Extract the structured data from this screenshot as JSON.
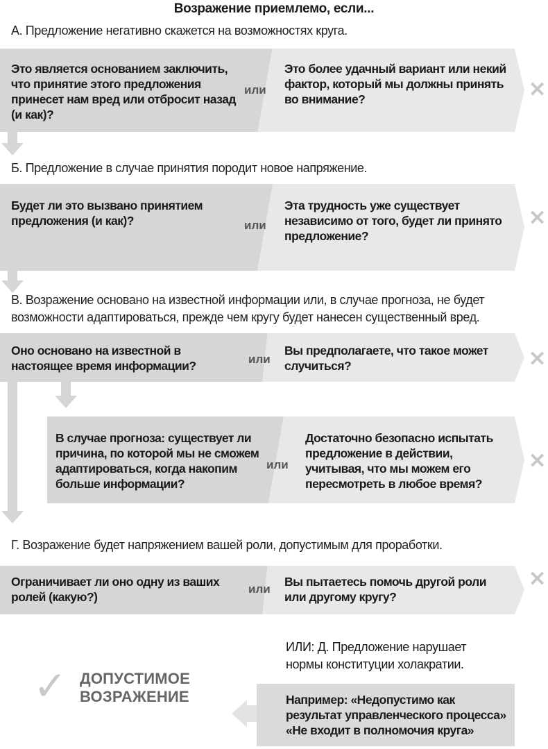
{
  "title": "Возражение приемлемо, если...",
  "sections": [
    {
      "heading": "А. Предложение негативно скажется на возможностях круга.",
      "question_left": "Это является основанием заключить, что принятие этого предложения принесет нам вред или отбросит назад (и как)?",
      "or_label": "или",
      "question_right": "Это более удачный вариант или некий фактор, который мы должны принять во внимание?"
    },
    {
      "heading": "Б. Предложение в случае принятия породит новое напряжение.",
      "question_left": "Будет ли это вызвано принятием предложения (и как)?",
      "or_label": "или",
      "question_right": "Эта трудность уже существует независимо от того, будет ли принято предложение?"
    },
    {
      "heading": "В. Возражение основано на известной информации или, в случае прогноза, не будет возможности адаптироваться, прежде чем кругу будет нанесен существенный вред.",
      "question_left": "Оно основано на известной в настоящее время информации?",
      "or_label": "или",
      "question_right": "Вы предполагаете, что такое может случиться?",
      "sub": {
        "question_left": "В случае прогноза: существует ли причина, по которой мы не сможем адаптироваться, когда накопим больше информации?",
        "or_label": "или",
        "question_right": "Достаточно безопасно испытать предложение в действии, учитывая, что мы можем его пересмотреть в любое время?"
      }
    },
    {
      "heading": "Г. Возражение будет напряжением вашей роли, допустимым для проработки.",
      "question_left": "Ограничивает ли оно одну из ваших ролей (какую?)",
      "or_label": "или",
      "question_right": "Вы пытаетесь помочь другой роли или другому кругу?"
    }
  ],
  "alt": {
    "heading": "ИЛИ: Д. Предложение нарушает нормы конституции холакратии.",
    "example": "Например: «Недопустимо как результат управленческого процесса» «Не входит в полномочия круга»"
  },
  "result": {
    "icon": "check-icon",
    "label_line1": "ДОПУСТИМОЕ",
    "label_line2": "ВОЗРАЖЕНИЕ"
  },
  "reject_icon": "x-icon",
  "reject_glyph": "✕",
  "check_glyph": "✓",
  "colors": {
    "box_dark": "#d6d6d6",
    "box_light": "#e8e8e8",
    "icon_gray": "#c8c8c8",
    "result_text": "#666666"
  }
}
